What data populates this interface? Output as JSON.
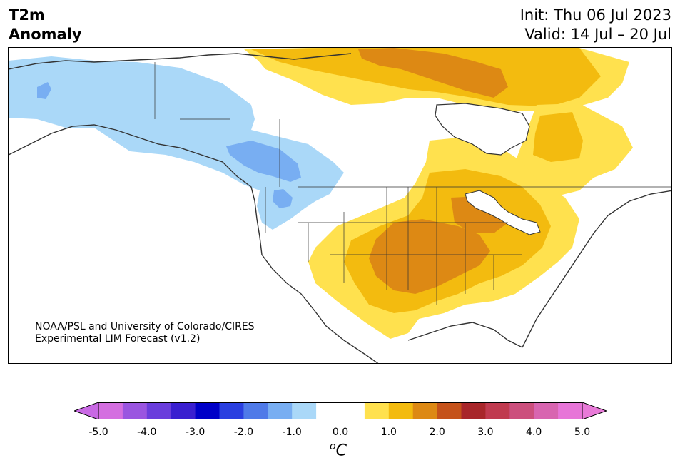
{
  "title": {
    "variable_line1": "T2m",
    "variable_line2": "Anomaly",
    "init": "Init: Thu 06 Jul 2023",
    "valid": "Valid: 14 Jul – 20 Jul"
  },
  "credit": {
    "line1": "NOAA/PSL and University of Colorado/CIRES",
    "line2": "Experimental LIM Forecast (v1.2)"
  },
  "colorbar": {
    "unit_base": "C",
    "unit_prefix": "o",
    "ticks": [
      "-5.0",
      "-4.0",
      "-3.0",
      "-2.0",
      "-1.0",
      "0.0",
      "1.0",
      "2.0",
      "3.0",
      "4.0",
      "5.0"
    ],
    "colors": [
      "#d46ee0",
      "#9a55e0",
      "#6a3ddc",
      "#3a1fd0",
      "#0000c8",
      "#2a3fe0",
      "#4f7ae8",
      "#78aef2",
      "#aad8f8",
      "#ffffff",
      "#ffffff",
      "#ffe14e",
      "#f3bb0f",
      "#dd8914",
      "#c5521a",
      "#a8262a",
      "#c03a4f",
      "#cc4f7d",
      "#d865b0",
      "#e775d8"
    ],
    "under_color": "#c969e4",
    "over_color": "#e87ad8"
  },
  "legend_classes": {
    "cool_1": "#aad8f8",
    "cool_2": "#78aef2",
    "warm_1": "#ffe14e",
    "warm_2": "#f3bb0f",
    "warm_3": "#dd8914"
  }
}
